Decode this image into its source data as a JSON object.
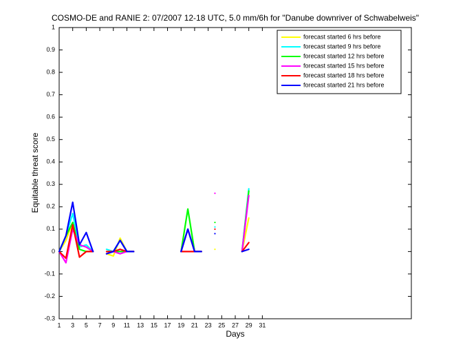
{
  "chart_data": {
    "type": "line",
    "title": "COSMO-DE and RANIE 2: 07/2007 12-18 UTC, 5.0 mm/6h for \"Danube downriver of Schwabelweis\"",
    "xlabel": "Days",
    "ylabel": "Equitable threat score",
    "x": [
      1,
      2,
      3,
      4,
      5,
      6,
      7,
      8,
      9,
      10,
      11,
      12,
      13,
      14,
      15,
      16,
      17,
      18,
      19,
      20,
      21,
      22,
      23,
      24,
      25,
      26,
      27,
      28,
      29,
      30,
      31
    ],
    "xlim": [
      1,
      53
    ],
    "ylim": [
      -0.3,
      1
    ],
    "xticks": [
      1,
      3,
      5,
      7,
      9,
      11,
      13,
      15,
      17,
      19,
      21,
      23,
      25,
      27,
      29,
      31
    ],
    "yticks": [
      -0.3,
      -0.2,
      -0.1,
      0,
      0.1,
      0.2,
      0.3,
      0.4,
      0.5,
      0.6,
      0.7,
      0.8,
      0.9,
      1
    ],
    "legend": "northeast",
    "series": [
      {
        "name": "forecast started 6 hrs before",
        "color": "#ffff00",
        "values": [
          0,
          0.05,
          0.13,
          0.03,
          0.02,
          0,
          null,
          -0.01,
          -0.02,
          0.06,
          0,
          0,
          null,
          null,
          null,
          null,
          null,
          null,
          0,
          0.1,
          0,
          0,
          null,
          0.01,
          null,
          null,
          null,
          0,
          0.15,
          null,
          null
        ]
      },
      {
        "name": "forecast started 9 hrs before",
        "color": "#00ffff",
        "values": [
          0,
          0.07,
          0.17,
          0.02,
          0.03,
          0,
          null,
          0.01,
          0,
          0.05,
          0,
          0,
          null,
          null,
          null,
          null,
          null,
          null,
          0,
          0.1,
          0,
          0,
          null,
          0.11,
          null,
          null,
          null,
          0,
          0.28,
          null,
          null
        ]
      },
      {
        "name": "forecast started 12 hrs before",
        "color": "#00ff00",
        "values": [
          0,
          0.07,
          0.13,
          0.01,
          0,
          0,
          null,
          -0.01,
          0,
          0,
          0,
          0,
          null,
          null,
          null,
          null,
          null,
          null,
          0,
          0.19,
          0,
          0,
          null,
          0.13,
          null,
          null,
          null,
          0,
          0.27,
          null,
          null
        ]
      },
      {
        "name": "forecast started 15 hrs before",
        "color": "#ff00ff",
        "values": [
          0,
          -0.05,
          0.1,
          0.03,
          0.02,
          0,
          null,
          -0.01,
          0,
          -0.01,
          0,
          0,
          null,
          null,
          null,
          null,
          null,
          null,
          0,
          0.1,
          0,
          0,
          null,
          0.26,
          null,
          null,
          null,
          0,
          0.25,
          null,
          null
        ]
      },
      {
        "name": "forecast started 18 hrs before",
        "color": "#ff0000",
        "values": [
          0,
          -0.03,
          0.12,
          -0.025,
          0,
          0,
          null,
          0,
          0,
          0.01,
          0,
          0,
          null,
          null,
          null,
          null,
          null,
          null,
          0,
          0,
          0,
          0,
          null,
          0.1,
          null,
          null,
          null,
          0,
          0.04,
          null,
          null
        ]
      },
      {
        "name": "forecast started 21 hrs before",
        "color": "#0000ff",
        "values": [
          0,
          0.07,
          0.22,
          0.03,
          0.085,
          0,
          null,
          -0.01,
          0,
          0.05,
          0,
          0,
          null,
          null,
          null,
          null,
          null,
          null,
          0,
          0.1,
          0,
          0,
          null,
          0.08,
          null,
          null,
          null,
          0,
          0.01,
          null,
          null
        ]
      }
    ]
  }
}
